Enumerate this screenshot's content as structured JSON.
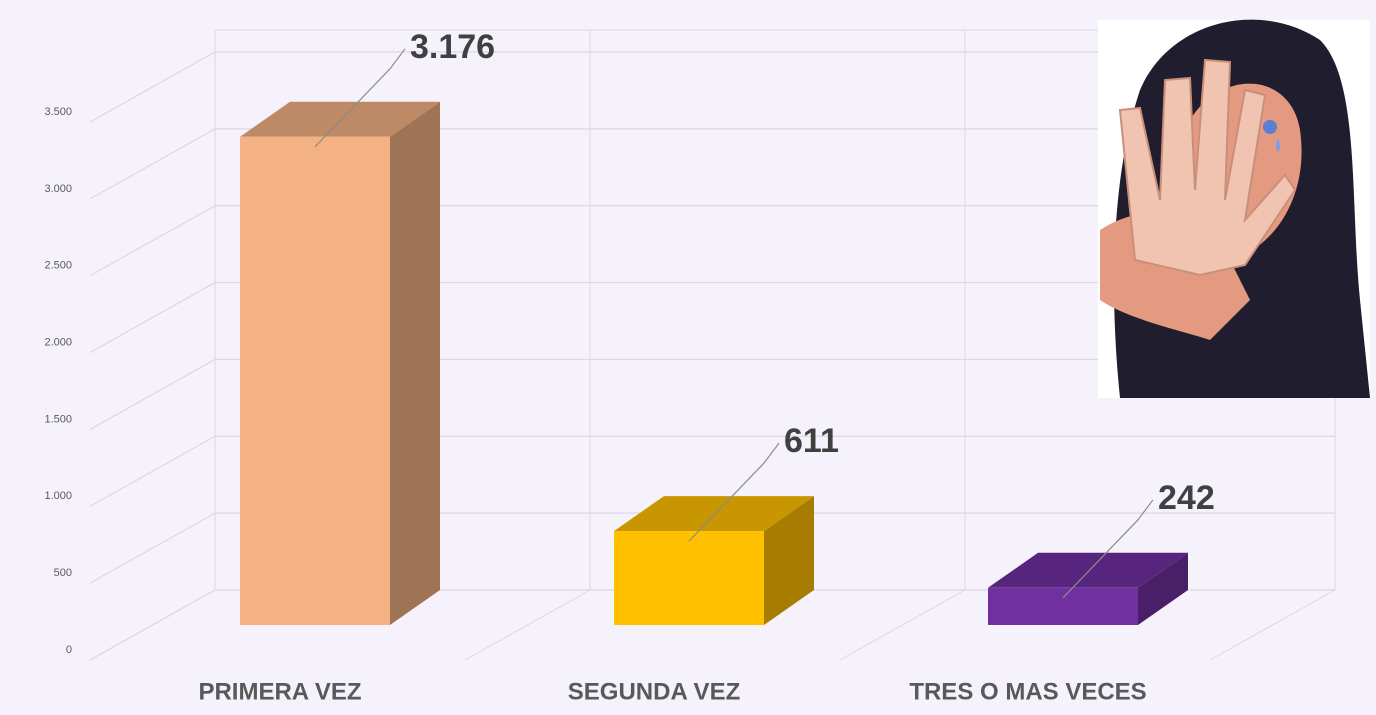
{
  "chart_data": {
    "type": "bar3d",
    "categories": [
      "PRIMERA VEZ",
      "SEGUNDA VEZ",
      "TRES O MAS VECES"
    ],
    "values": [
      3176,
      611,
      242
    ],
    "value_labels": [
      "3.176",
      "611",
      "242"
    ],
    "colors": [
      "#f4b183",
      "#ffc000",
      "#7030a0"
    ],
    "ylim": [
      0,
      3500
    ],
    "yticks": [
      0,
      500,
      {
        "value": 1000,
        "label": "1.000"
      },
      {
        "value": 1500,
        "label": "1.500"
      },
      {
        "value": 2000,
        "label": "2.000"
      },
      {
        "value": 2500,
        "label": "2.500"
      },
      {
        "value": 3000,
        "label": "3.000"
      },
      {
        "value": 3500,
        "label": "3.500"
      }
    ],
    "grid": true
  }
}
